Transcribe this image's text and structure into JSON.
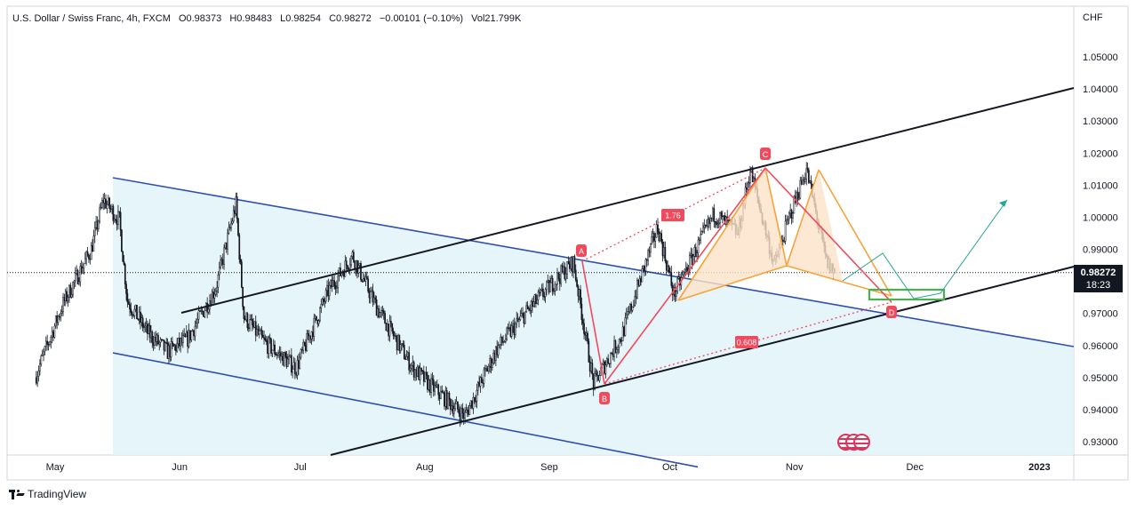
{
  "header": {
    "symbol": "U.S. Dollar / Swiss Franc, 4h, FXCM",
    "open": "O0.98373",
    "high": "H0.98483",
    "low": "L0.98254",
    "close": "C0.98272",
    "change": "−0.00101 (−0.10%)",
    "volume": "Vol21.799K"
  },
  "axis": {
    "currency": "CHF",
    "price_ticks": [
      "1.05000",
      "1.04000",
      "1.03000",
      "1.02000",
      "1.01000",
      "1.00000",
      "0.99000",
      "0.98000",
      "0.97000",
      "0.96000",
      "0.95000",
      "0.94000",
      "0.93000"
    ],
    "time_ticks": [
      "May",
      "Jun",
      "Jul",
      "Aug",
      "Sep",
      "Oct",
      "Nov",
      "Dec",
      "2023"
    ]
  },
  "last_price": {
    "value": "0.98272",
    "countdown": "18:23"
  },
  "brand": "TradingView",
  "colors": {
    "up": "#089981",
    "down": "#f23645",
    "candle": "#131722",
    "channel": "#2d4fb0",
    "channel_fill": "#e3f4f8",
    "trendline": "#131722",
    "harmonic_line": "#f2495c",
    "harmonic_orange": "#f7a23b",
    "harmonic_fill": "#fde3c8",
    "target_box": "#4caf50",
    "projection": "#26a69a"
  },
  "chart_data": {
    "type": "candlestick",
    "instrument": "USDCHF",
    "timeframe": "4h",
    "ylim": [
      0.925,
      1.055
    ],
    "x_labels": [
      "May",
      "Jun",
      "Jul",
      "Aug",
      "Sep",
      "Oct",
      "Nov",
      "Dec",
      "2023"
    ],
    "price_path": [
      {
        "date": "Apr 26",
        "price": 0.95
      },
      {
        "date": "May 3",
        "price": 0.973
      },
      {
        "date": "May 10",
        "price": 0.99
      },
      {
        "date": "May 13",
        "price": 1.0055
      },
      {
        "date": "May 17",
        "price": 0.999
      },
      {
        "date": "May 19",
        "price": 0.974
      },
      {
        "date": "May 24",
        "price": 0.964
      },
      {
        "date": "May 29",
        "price": 0.958
      },
      {
        "date": "Jun 3",
        "price": 0.962
      },
      {
        "date": "Jun 10",
        "price": 0.978
      },
      {
        "date": "Jun 15",
        "price": 1.004
      },
      {
        "date": "Jun 17",
        "price": 0.969
      },
      {
        "date": "Jun 22",
        "price": 0.961
      },
      {
        "date": "Jun 30",
        "price": 0.953
      },
      {
        "date": "Jul 8",
        "price": 0.977
      },
      {
        "date": "Jul 14",
        "price": 0.988
      },
      {
        "date": "Jul 20",
        "price": 0.972
      },
      {
        "date": "Jul 29",
        "price": 0.953
      },
      {
        "date": "Aug 2",
        "price": 0.948
      },
      {
        "date": "Aug 11",
        "price": 0.938
      },
      {
        "date": "Aug 19",
        "price": 0.959
      },
      {
        "date": "Aug 26",
        "price": 0.97
      },
      {
        "date": "Sep 3",
        "price": 0.981
      },
      {
        "date": "Sep 7",
        "price": 0.986
      },
      {
        "date": "Sep 12",
        "price": 0.948
      },
      {
        "date": "Sep 19",
        "price": 0.963
      },
      {
        "date": "Sep 28",
        "price": 0.997
      },
      {
        "date": "Oct 2",
        "price": 0.976
      },
      {
        "date": "Oct 12",
        "price": 1.001
      },
      {
        "date": "Oct 18",
        "price": 0.995
      },
      {
        "date": "Oct 21",
        "price": 1.015
      },
      {
        "date": "Oct 27",
        "price": 0.985
      },
      {
        "date": "Oct 31",
        "price": 1.001
      },
      {
        "date": "Nov 4",
        "price": 1.015
      },
      {
        "date": "Nov 9",
        "price": 0.986
      },
      {
        "date": "Nov 11",
        "price": 0.9827
      }
    ],
    "last_close": 0.98272,
    "annotations": {
      "harmonic_points": [
        {
          "label": "A",
          "price": 0.987
        },
        {
          "label": "B",
          "price": 0.948
        },
        {
          "label": "C",
          "price": 1.016
        },
        {
          "label": "D",
          "price": 0.972
        }
      ],
      "ratios": [
        "1.76",
        "0.608"
      ],
      "descending_channel": {
        "upper": [
          1.0125,
          0.96
        ],
        "lower": [
          0.958,
          0.925
        ]
      },
      "rising_channel": {
        "upper": [
          0.97,
          1.041
        ],
        "lower": [
          0.923,
          0.984
        ]
      },
      "target_zone": [
        0.9745,
        0.9765
      ]
    }
  }
}
